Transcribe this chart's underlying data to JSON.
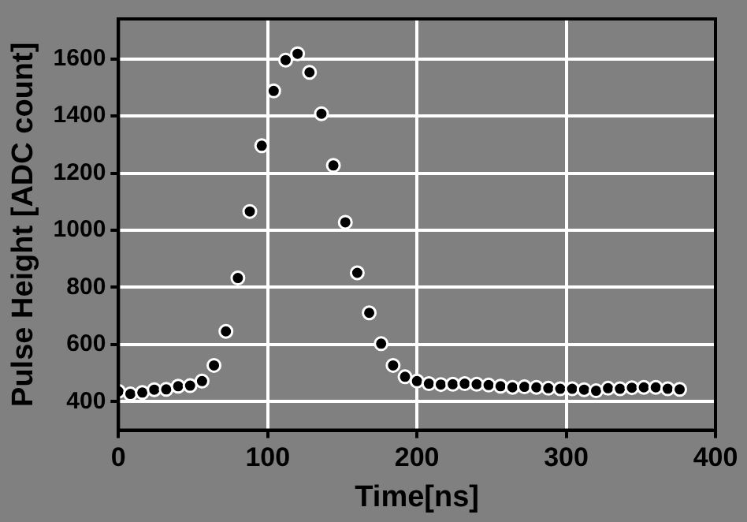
{
  "chart_data": {
    "type": "scatter",
    "xlabel": "Time[ns]",
    "ylabel": "Pulse Height [ADC count]",
    "x": [
      0,
      8,
      16,
      24,
      32,
      40,
      48,
      56,
      64,
      72,
      80,
      88,
      96,
      104,
      112,
      120,
      128,
      136,
      144,
      152,
      160,
      168,
      176,
      184,
      192,
      200,
      208,
      216,
      224,
      232,
      240,
      248,
      256,
      264,
      272,
      280,
      288,
      296,
      304,
      312,
      320,
      328,
      336,
      344,
      352,
      360,
      368,
      376
    ],
    "series": [
      {
        "color": "#000000",
        "values": [
          436,
          427,
          432,
          442,
          443,
          454,
          456,
          472,
          527,
          646,
          833,
          1066,
          1296,
          1488,
          1596,
          1618,
          1553,
          1408,
          1227,
          1028,
          851,
          711,
          603,
          527,
          487,
          472,
          463,
          460,
          461,
          463,
          461,
          458,
          454,
          450,
          452,
          450,
          447,
          445,
          445,
          442,
          438,
          447,
          445,
          449,
          450,
          450,
          445,
          443
        ]
      }
    ],
    "xlim": [
      0,
      400
    ],
    "xticks": [
      0,
      100,
      200,
      300,
      400
    ],
    "ylim": [
      300,
      1740
    ],
    "yticks": [
      400,
      600,
      800,
      1000,
      1200,
      1400,
      1600
    ],
    "grid": true,
    "legend": false,
    "marker": "circle"
  }
}
